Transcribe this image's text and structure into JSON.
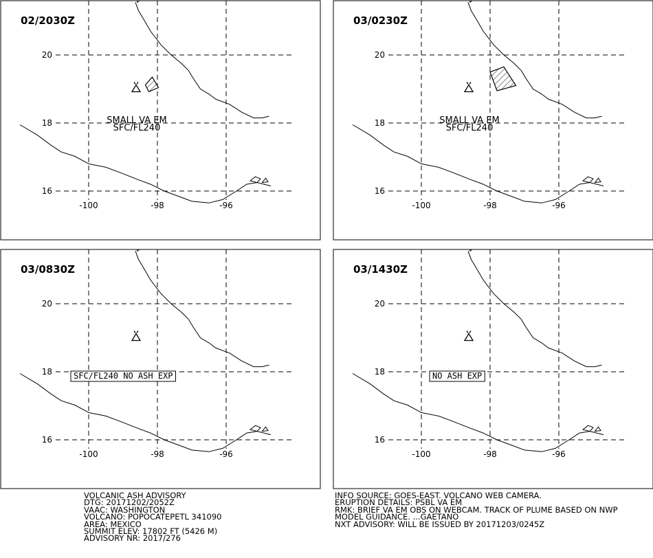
{
  "panels": [
    {
      "time": "02/2030Z",
      "plume": [
        [
          -98.35,
          19.12
        ],
        [
          -98.15,
          19.35
        ],
        [
          -97.97,
          19.04
        ],
        [
          -98.25,
          18.92
        ]
      ],
      "label_lines": [
        "SMALL VA EM",
        "SFC/FL240"
      ],
      "boxed_label": ""
    },
    {
      "time": "03/0230Z",
      "plume": [
        [
          -98.0,
          19.5
        ],
        [
          -97.6,
          19.65
        ],
        [
          -97.25,
          19.1
        ],
        [
          -97.8,
          18.95
        ]
      ],
      "label_lines": [
        "SMALL VA EM",
        "SFC/FL240"
      ],
      "boxed_label": ""
    },
    {
      "time": "03/0830Z",
      "plume": [],
      "label_lines": [],
      "boxed_label": "SFC/FL240 NO ASH EXP"
    },
    {
      "time": "03/1430Z",
      "plume": [],
      "label_lines": [],
      "boxed_label": "NO ASH EXP"
    }
  ],
  "axes": {
    "lat_ticks": [
      {
        "value": 20,
        "label": "20"
      },
      {
        "value": 18,
        "label": "18"
      },
      {
        "value": 16,
        "label": "16"
      }
    ],
    "lon_ticks": [
      {
        "value": -100,
        "label": "-100"
      },
      {
        "value": -98,
        "label": "-98"
      },
      {
        "value": -96,
        "label": "-96"
      }
    ]
  },
  "volcano": {
    "name": "POPOCATEPETL",
    "lon": -98.62,
    "lat": 19.02
  },
  "footer_left": [
    "VOLCANIC ASH ADVISORY",
    "DTG: 20171202/2052Z",
    "VAAC: WASHINGTON",
    "VOLCANO: POPOCATEPETL 341090",
    "AREA: MEXICO",
    "SUMMIT ELEV: 17802 FT (5426 M)",
    "ADVISORY NR: 2017/276"
  ],
  "footer_right": [
    "INFO SOURCE: GOES-EAST. VOLCANO WEB CAMERA.",
    "ERUPTION DETAILS: PSBL VA EM",
    "RMK: BRIEF VA EM OBS ON WEBCAM. TRACK OF PLUME BASED ON NWP",
    "MODEL GUIDANCE. ...GAETANO",
    "NXT ADVISORY: WILL BE ISSUED BY 20171203/0245Z"
  ]
}
